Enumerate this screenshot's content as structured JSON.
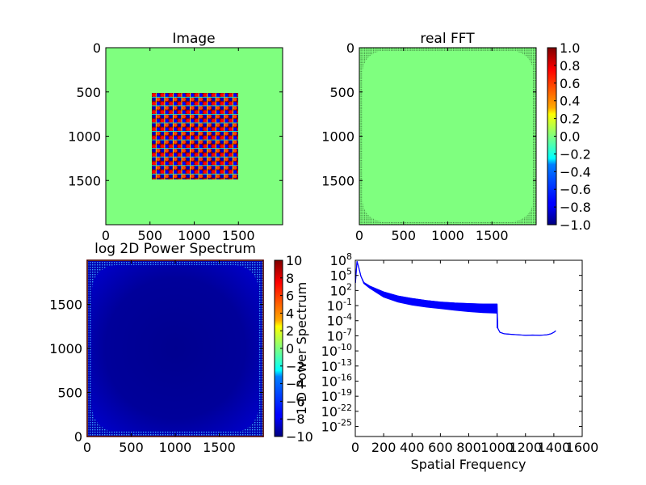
{
  "chart_data": [
    {
      "type": "heatmap",
      "title": "Image",
      "xlabel": "",
      "ylabel": "",
      "xlim": [
        0,
        2000
      ],
      "ylim": [
        2000,
        0
      ],
      "x_ticks": [
        "0",
        "500",
        "1000",
        "1500"
      ],
      "y_ticks": [
        "0",
        "500",
        "1000",
        "1500"
      ],
      "background_value": 0.0,
      "checkerboard_extent": {
        "x": [
          525,
          1475
        ],
        "y": [
          525,
          1475
        ]
      },
      "checkerboard_cells": 18
    },
    {
      "type": "heatmap",
      "title": "real FFT",
      "xlabel": "",
      "ylabel": "",
      "xlim": [
        0,
        2000
      ],
      "ylim": [
        2000,
        0
      ],
      "x_ticks": [
        "0",
        "500",
        "1000",
        "1500"
      ],
      "y_ticks": [
        "0",
        "500",
        "1000",
        "1500"
      ],
      "colorbar": {
        "ticks": [
          "1.0",
          "0.8",
          "0.6",
          "0.4",
          "0.2",
          "0.0",
          "−0.2",
          "−0.4",
          "−0.6",
          "−0.8",
          "−1.0"
        ],
        "range": [
          -1.0,
          1.0
        ]
      }
    },
    {
      "type": "heatmap",
      "title": "log 2D Power Spectrum",
      "xlabel": "",
      "ylabel": "",
      "xlim": [
        0,
        2000
      ],
      "ylim": [
        0,
        2000
      ],
      "x_ticks": [
        "0",
        "500",
        "1000",
        "1500"
      ],
      "y_ticks": [
        "1500",
        "1000",
        "500",
        "0"
      ],
      "colorbar": {
        "label": "1-D Power Spectrum",
        "ticks": [
          "10",
          "8",
          "6",
          "4",
          "2",
          "0",
          "−2",
          "−4",
          "−6",
          "−8",
          "−10"
        ],
        "range": [
          -10,
          10
        ]
      }
    },
    {
      "type": "line",
      "title": "",
      "xlabel": "Spatial Frequency",
      "ylabel": "",
      "xlim": [
        0,
        1600
      ],
      "y_scale": "log",
      "ylim_exp": [
        -27,
        8
      ],
      "x_ticks": [
        "0",
        "200",
        "400",
        "600",
        "800",
        "1000",
        "1200",
        "1400",
        "1600"
      ],
      "y_ticks": [
        {
          "base": "10",
          "exp": "8"
        },
        {
          "base": "10",
          "exp": "5"
        },
        {
          "base": "10",
          "exp": "2"
        },
        {
          "base": "10",
          "exp": "-1"
        },
        {
          "base": "10",
          "exp": "-4"
        },
        {
          "base": "10",
          "exp": "-7"
        },
        {
          "base": "10",
          "exp": "-10"
        },
        {
          "base": "10",
          "exp": "-13"
        },
        {
          "base": "10",
          "exp": "-16"
        },
        {
          "base": "10",
          "exp": "-19"
        },
        {
          "base": "10",
          "exp": "-22"
        },
        {
          "base": "10",
          "exp": "-25"
        }
      ],
      "series": [
        {
          "color": "#0000ff",
          "x": [
            1,
            12,
            25,
            40,
            60,
            100,
            150,
            200,
            300,
            400,
            500,
            600,
            700,
            800,
            900,
            999,
            1005,
            1020,
            1050,
            1100,
            1150,
            1200,
            1250,
            1300,
            1350,
            1380,
            1400,
            1414
          ],
          "y_upper_exp": [
            3.5,
            7.8,
            6.5,
            4.8,
            3.6,
            2.9,
            2.3,
            1.7,
            0.9,
            0.4,
            0.0,
            -0.3,
            -0.5,
            -0.6,
            -0.7,
            -0.7,
            -5.5,
            -6.3,
            -6.6,
            -6.7,
            -6.8,
            -6.9,
            -6.85,
            -6.9,
            -6.8,
            -6.6,
            -6.3,
            -6.0
          ],
          "y_lower_exp": [
            3.5,
            7.8,
            6.5,
            4.8,
            3.4,
            2.5,
            1.6,
            0.7,
            -0.3,
            -0.9,
            -1.3,
            -1.6,
            -1.9,
            -2.2,
            -2.4,
            -2.5,
            -5.5,
            -6.3,
            -6.6,
            -6.7,
            -6.8,
            -6.9,
            -6.85,
            -6.9,
            -6.8,
            -6.6,
            -6.3,
            -6.0
          ]
        }
      ]
    }
  ],
  "colors": {
    "jet_zero": "#7fff7f",
    "jet_min": "#00007f",
    "line": "#0000ff"
  }
}
